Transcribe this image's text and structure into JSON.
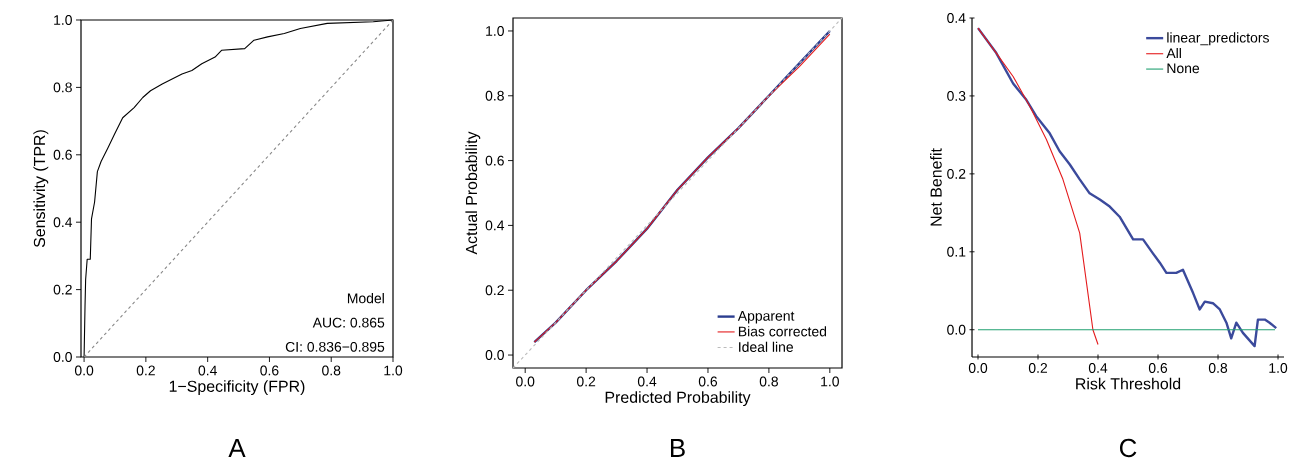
{
  "chart_data": [
    {
      "type": "line",
      "title": "A",
      "xlabel": "1−Specificity (FPR)",
      "ylabel": "Sensitivity (TPR)",
      "xlim": [
        -0.01,
        1.0
      ],
      "ylim": [
        -0.0,
        1.0
      ],
      "xticks": [
        {
          "value": 0,
          "label": "0.0"
        },
        {
          "value": 0.2,
          "label": "0.2"
        },
        {
          "value": 0.4,
          "label": "0.4"
        },
        {
          "value": 0.6,
          "label": "0.6"
        },
        {
          "value": 0.8,
          "label": "0.8"
        },
        {
          "value": 1,
          "label": "1.0"
        }
      ],
      "yticks": [
        {
          "value": 0,
          "label": "0.0"
        },
        {
          "value": 0.2,
          "label": "0.2"
        },
        {
          "value": 0.4,
          "label": "0.4"
        },
        {
          "value": 0.6,
          "label": "0.6"
        },
        {
          "value": 0.8,
          "label": "0.8"
        },
        {
          "value": 1,
          "label": "1.0"
        }
      ],
      "series": [
        {
          "color": "#000000",
          "x": [
            0,
            0.003,
            0.005,
            0.01,
            0.02,
            0.024,
            0.034,
            0.043,
            0.055,
            0.077,
            0.098,
            0.125,
            0.162,
            0.19,
            0.215,
            0.253,
            0.317,
            0.349,
            0.381,
            0.424,
            0.445,
            0.52,
            0.55,
            0.594,
            0.648,
            0.7,
            0.787,
            0.936,
            1.0
          ],
          "values": [
            0,
            0.15,
            0.23,
            0.29,
            0.29,
            0.41,
            0.46,
            0.55,
            0.58,
            0.62,
            0.66,
            0.71,
            0.74,
            0.77,
            0.79,
            0.81,
            0.84,
            0.85,
            0.87,
            0.89,
            0.91,
            0.915,
            0.94,
            0.95,
            0.96,
            0.975,
            0.99,
            0.995,
            1.0
          ]
        },
        {
          "color": "#888888",
          "line_style": "dashed",
          "x": [
            0,
            1
          ],
          "values": [
            0,
            1
          ]
        }
      ],
      "annotations": [
        "Model",
        "AUC: 0.865",
        "CI: 0.836−0.895"
      ]
    },
    {
      "type": "line",
      "title": "B",
      "xlabel": "Predicted Probability",
      "ylabel": "Actual Probability",
      "legend": "bottom right",
      "xlim": [
        -0.04,
        1.04
      ],
      "ylim": [
        -0.04,
        1.04
      ],
      "xticks": [
        {
          "value": 0,
          "label": "0.0"
        },
        {
          "value": 0.2,
          "label": "0.2"
        },
        {
          "value": 0.4,
          "label": "0.4"
        },
        {
          "value": 0.6,
          "label": "0.6"
        },
        {
          "value": 0.8,
          "label": "0.8"
        },
        {
          "value": 1,
          "label": "1.0"
        }
      ],
      "yticks": [
        {
          "value": 0,
          "label": "0.0"
        },
        {
          "value": 0.2,
          "label": "0.2"
        },
        {
          "value": 0.4,
          "label": "0.4"
        },
        {
          "value": 0.6,
          "label": "0.6"
        },
        {
          "value": 0.8,
          "label": "0.8"
        },
        {
          "value": 1,
          "label": "1.0"
        }
      ],
      "series": [
        {
          "name": "Apparent",
          "color": "#2b3d8f",
          "x": [
            0.03,
            0.1,
            0.2,
            0.3,
            0.4,
            0.45,
            0.5,
            0.6,
            0.7,
            0.8,
            0.9,
            1.0
          ],
          "values": [
            0.04,
            0.1,
            0.2,
            0.29,
            0.39,
            0.45,
            0.51,
            0.61,
            0.7,
            0.8,
            0.9,
            1.0
          ]
        },
        {
          "name": "Bias corrected",
          "color": "#e41a1c",
          "x": [
            0.03,
            0.1,
            0.2,
            0.3,
            0.4,
            0.45,
            0.5,
            0.6,
            0.7,
            0.8,
            0.9,
            1.0
          ],
          "values": [
            0.04,
            0.1,
            0.2,
            0.29,
            0.39,
            0.45,
            0.51,
            0.61,
            0.7,
            0.8,
            0.89,
            0.99
          ]
        },
        {
          "name": "Ideal line",
          "color": "#bbbbbb",
          "line_style": "dashed",
          "x": [
            -0.04,
            1.04
          ],
          "values": [
            -0.04,
            1.04
          ]
        }
      ]
    },
    {
      "type": "line",
      "title": "C",
      "xlabel": "Risk Threshold",
      "ylabel": "Net Benefit",
      "legend": "top right",
      "xlim": [
        -0.02,
        1.02
      ],
      "ylim": [
        -0.035,
        0.4
      ],
      "xticks": [
        {
          "value": 0,
          "label": "0.0"
        },
        {
          "value": 0.2,
          "label": "0.2"
        },
        {
          "value": 0.4,
          "label": "0.4"
        },
        {
          "value": 0.6,
          "label": "0.6"
        },
        {
          "value": 0.8,
          "label": "0.8"
        },
        {
          "value": 1,
          "label": "1.0"
        }
      ],
      "yticks": [
        {
          "value": 0,
          "label": "0.0"
        },
        {
          "value": 0.1,
          "label": "0.1"
        },
        {
          "value": 0.2,
          "label": "0.2"
        },
        {
          "value": 0.3,
          "label": "0.3"
        },
        {
          "value": 0.4,
          "label": "0.4"
        }
      ],
      "series": [
        {
          "name": "linear_predictors",
          "color": "#3b4a9c",
          "x": [
            0,
            0.061,
            0.117,
            0.161,
            0.194,
            0.239,
            0.272,
            0.306,
            0.339,
            0.372,
            0.406,
            0.439,
            0.472,
            0.517,
            0.55,
            0.583,
            0.606,
            0.628,
            0.661,
            0.683,
            0.717,
            0.739,
            0.756,
            0.783,
            0.806,
            0.828,
            0.844,
            0.861,
            0.883,
            0.922,
            0.933,
            0.956,
            0.972,
            0.994
          ],
          "values": [
            0.387,
            0.355,
            0.316,
            0.295,
            0.274,
            0.252,
            0.229,
            0.212,
            0.193,
            0.175,
            0.167,
            0.158,
            0.145,
            0.116,
            0.116,
            0.098,
            0.086,
            0.073,
            0.073,
            0.077,
            0.047,
            0.026,
            0.036,
            0.034,
            0.026,
            0.009,
            -0.011,
            0.009,
            -0.004,
            -0.021,
            0.013,
            0.013,
            0.009,
            0.002
          ]
        },
        {
          "name": "All",
          "color": "#e41a1c",
          "x": [
            0,
            0.061,
            0.117,
            0.172,
            0.228,
            0.283,
            0.339,
            0.383,
            0.4
          ],
          "values": [
            0.387,
            0.355,
            0.325,
            0.287,
            0.244,
            0.193,
            0.124,
            0.0,
            -0.019
          ]
        },
        {
          "name": "None",
          "color": "#20a070",
          "x": [
            0,
            0.99
          ],
          "values": [
            0,
            0
          ]
        }
      ]
    }
  ]
}
